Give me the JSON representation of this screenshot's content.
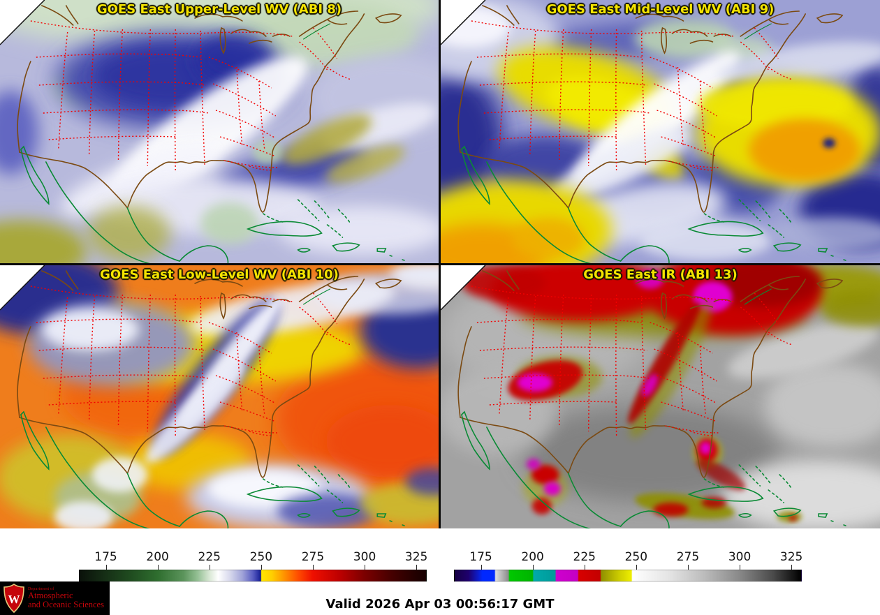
{
  "panels": [
    {
      "id": "abi8",
      "title": "GOES East Upper-Level WV (ABI 8)"
    },
    {
      "id": "abi9",
      "title": "GOES East Mid-Level WV (ABI 9)"
    },
    {
      "id": "abi10",
      "title": "GOES East Low-Level WV (ABI 10)"
    },
    {
      "id": "abi13",
      "title": "GOES East IR (ABI 13)"
    }
  ],
  "colorbars": [
    {
      "id": "wv-colorbar",
      "ticks": [
        175,
        200,
        225,
        250,
        275,
        300,
        325
      ],
      "range": [
        162,
        330
      ],
      "stops": [
        {
          "p": 0.0,
          "c": "#0a110a"
        },
        {
          "p": 0.077,
          "c": "#163016"
        },
        {
          "p": 0.15,
          "c": "#204d20"
        },
        {
          "p": 0.226,
          "c": "#2f6e2f"
        },
        {
          "p": 0.3,
          "c": "#5b945b"
        },
        {
          "p": 0.34,
          "c": "#93bf93"
        },
        {
          "p": 0.375,
          "c": "#d9e8d5"
        },
        {
          "p": 0.4,
          "c": "#ffffff"
        },
        {
          "p": 0.435,
          "c": "#d6d7ec"
        },
        {
          "p": 0.47,
          "c": "#a0a3d8"
        },
        {
          "p": 0.5,
          "c": "#5a5ec2"
        },
        {
          "p": 0.516,
          "c": "#2a31a4"
        },
        {
          "p": 0.523,
          "c": "#141d8a"
        },
        {
          "p": 0.525,
          "c": "#ffe600"
        },
        {
          "p": 0.555,
          "c": "#ffcf00"
        },
        {
          "p": 0.59,
          "c": "#ff9400"
        },
        {
          "p": 0.63,
          "c": "#ff4e00"
        },
        {
          "p": 0.673,
          "c": "#ef0f00"
        },
        {
          "p": 0.75,
          "c": "#bd0000"
        },
        {
          "p": 0.821,
          "c": "#7d0000"
        },
        {
          "p": 0.9,
          "c": "#460000"
        },
        {
          "p": 0.97,
          "c": "#220000"
        },
        {
          "p": 1.0,
          "c": "#170000"
        }
      ]
    },
    {
      "id": "ir-colorbar",
      "ticks": [
        175,
        200,
        225,
        250,
        275,
        300,
        325
      ],
      "range": [
        162,
        330
      ],
      "stops": [
        {
          "p": 0.0,
          "c": "#160043"
        },
        {
          "p": 0.04,
          "c": "#1e006e"
        },
        {
          "p": 0.07,
          "c": "#0b1fd3"
        },
        {
          "p": 0.08,
          "c": "#0028ff"
        },
        {
          "p": 0.115,
          "c": "#0028ff"
        },
        {
          "p": 0.118,
          "c": "#dedede"
        },
        {
          "p": 0.155,
          "c": "#8c8c8c"
        },
        {
          "p": 0.158,
          "c": "#00c800"
        },
        {
          "p": 0.225,
          "c": "#00b400"
        },
        {
          "p": 0.228,
          "c": "#00aaaa"
        },
        {
          "p": 0.29,
          "c": "#009a9a"
        },
        {
          "p": 0.293,
          "c": "#ce00ce"
        },
        {
          "p": 0.355,
          "c": "#c400c4"
        },
        {
          "p": 0.358,
          "c": "#d80000"
        },
        {
          "p": 0.42,
          "c": "#c40000"
        },
        {
          "p": 0.423,
          "c": "#909000"
        },
        {
          "p": 0.48,
          "c": "#d2d200"
        },
        {
          "p": 0.51,
          "c": "#eeee00"
        },
        {
          "p": 0.513,
          "c": "#ffffff"
        },
        {
          "p": 0.62,
          "c": "#e4e4e4"
        },
        {
          "p": 0.72,
          "c": "#bcbcbc"
        },
        {
          "p": 0.82,
          "c": "#8a8a8a"
        },
        {
          "p": 0.92,
          "c": "#4a4a4a"
        },
        {
          "p": 1.0,
          "c": "#000000"
        }
      ]
    }
  ],
  "footer": {
    "valid_label": "Valid 2026 Apr 03 00:56:17 GMT"
  },
  "logo": {
    "dept": "Department of",
    "line1": "Atmospheric",
    "line2": "and Oceanic Sciences",
    "monogram": "W"
  },
  "map_colors": {
    "state_borders": "#f20000",
    "coastline": "#7b4a12",
    "water_features": "#0a8a35",
    "title_text": "#f5e400"
  }
}
